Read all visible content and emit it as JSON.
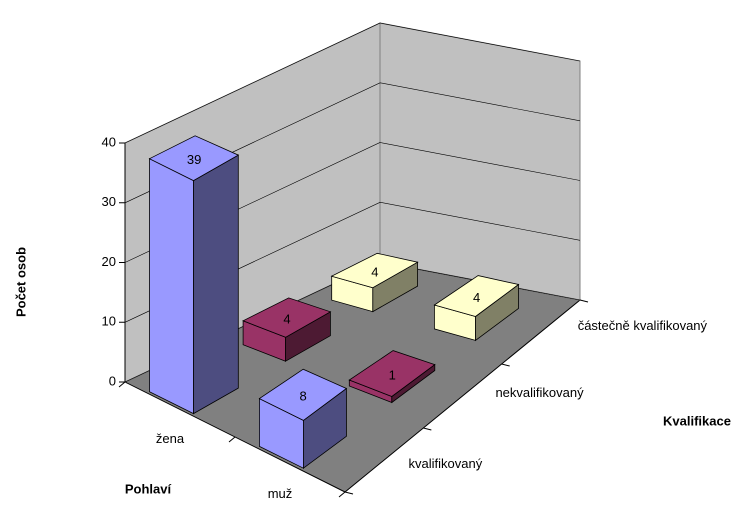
{
  "chart_data": {
    "type": "bar3d",
    "y_label": "Počet osob",
    "x_label": "Pohlaví",
    "z_label": "Kvalifikace",
    "categories": [
      "žena",
      "muž"
    ],
    "series": [
      {
        "name": "kvalifikovaný",
        "color": "#9999ff",
        "values": [
          39,
          8
        ]
      },
      {
        "name": "nekvalifikovaný",
        "color": "#993366",
        "values": [
          4,
          1
        ]
      },
      {
        "name": "částečně kvalifikovaný",
        "color": "#ffffcc",
        "values": [
          4,
          4
        ]
      }
    ],
    "ylim": [
      0,
      40
    ],
    "yticks": [
      0,
      10,
      20,
      30,
      40
    ],
    "grid": true
  }
}
